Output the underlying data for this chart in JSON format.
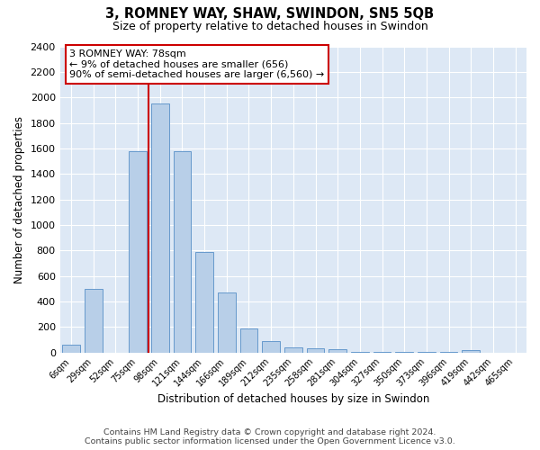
{
  "title": "3, ROMNEY WAY, SHAW, SWINDON, SN5 5QB",
  "subtitle": "Size of property relative to detached houses in Swindon",
  "xlabel": "Distribution of detached houses by size in Swindon",
  "ylabel": "Number of detached properties",
  "footer_line1": "Contains HM Land Registry data © Crown copyright and database right 2024.",
  "footer_line2": "Contains public sector information licensed under the Open Government Licence v3.0.",
  "bar_labels": [
    "6sqm",
    "29sqm",
    "52sqm",
    "75sqm",
    "98sqm",
    "121sqm",
    "144sqm",
    "166sqm",
    "189sqm",
    "212sqm",
    "235sqm",
    "258sqm",
    "281sqm",
    "304sqm",
    "327sqm",
    "350sqm",
    "373sqm",
    "396sqm",
    "419sqm",
    "442sqm",
    "465sqm"
  ],
  "bar_heights": [
    60,
    500,
    0,
    1580,
    1950,
    1580,
    790,
    470,
    190,
    90,
    40,
    35,
    25,
    5,
    5,
    5,
    5,
    5,
    20,
    0,
    0
  ],
  "bar_color": "#b8cfe8",
  "bar_edge_color": "#6699cc",
  "background_color": "#dde8f5",
  "grid_color": "#ffffff",
  "ylim": [
    0,
    2400
  ],
  "yticks": [
    0,
    200,
    400,
    600,
    800,
    1000,
    1200,
    1400,
    1600,
    1800,
    2000,
    2200,
    2400
  ],
  "vline_idx": 3,
  "vline_color": "#cc0000",
  "annotation_text": "3 ROMNEY WAY: 78sqm\n← 9% of detached houses are smaller (656)\n90% of semi-detached houses are larger (6,560) →",
  "annotation_box_color": "#ffffff",
  "annotation_box_edge": "#cc0000",
  "bar_width": 0.8
}
